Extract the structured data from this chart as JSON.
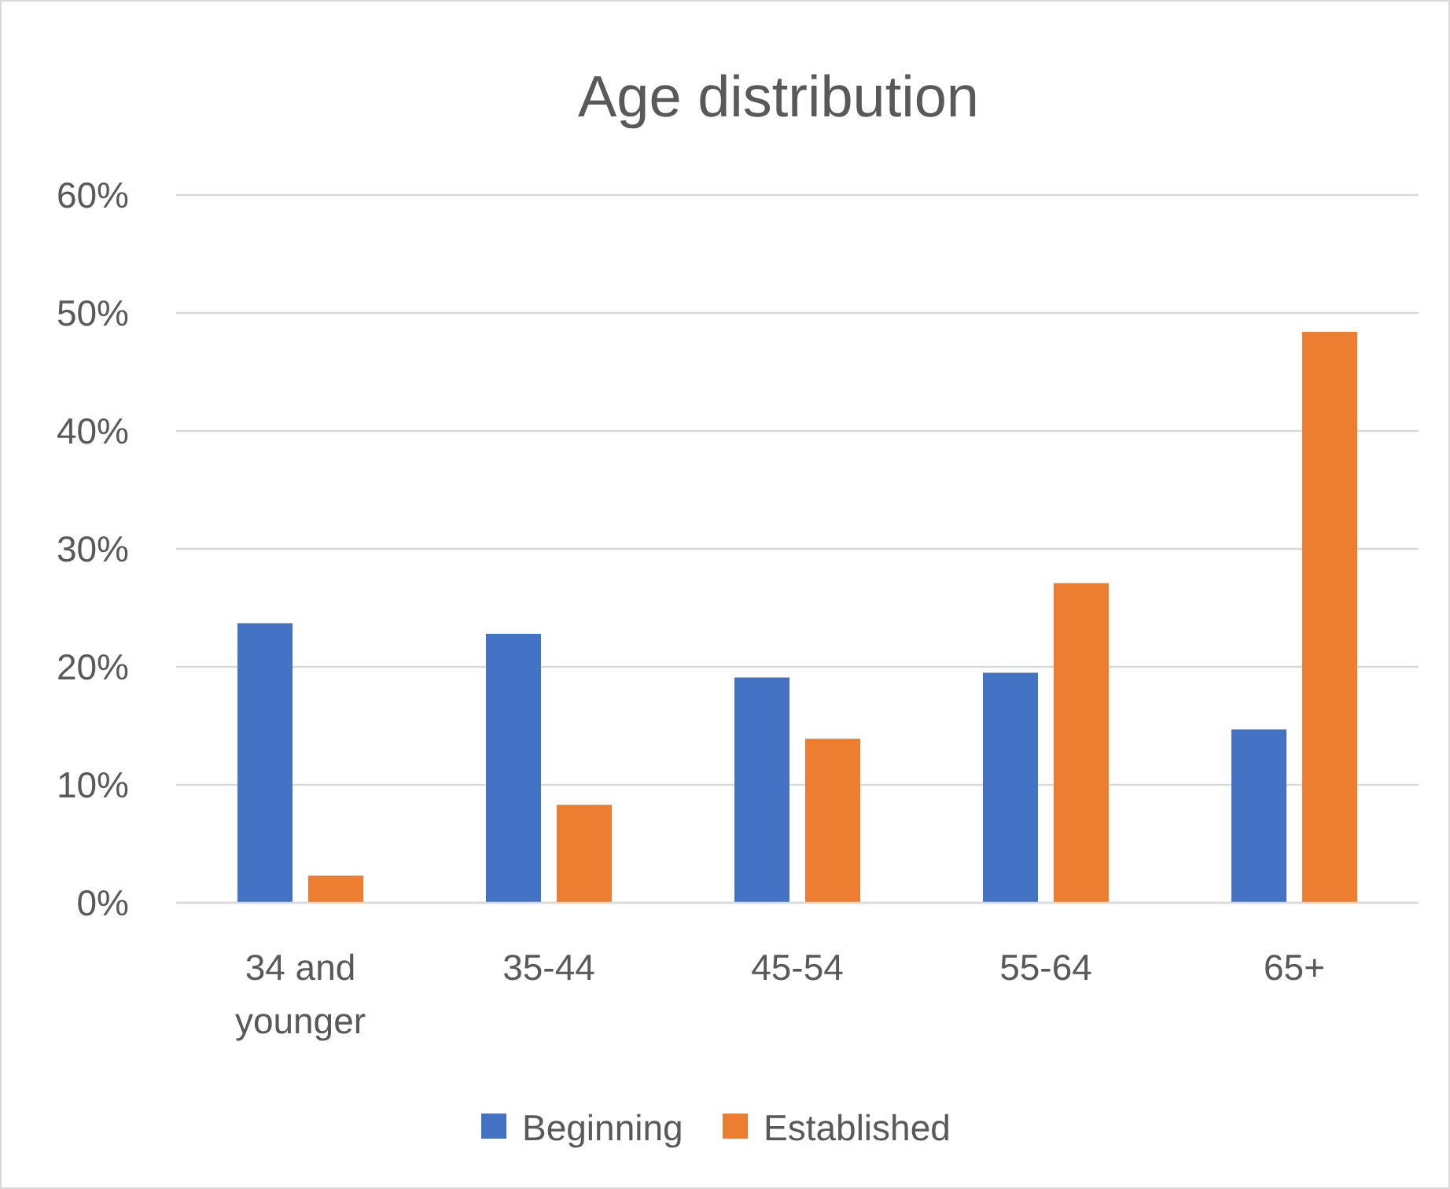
{
  "chart_data": {
    "type": "bar",
    "title": "Age distribution",
    "categories": [
      "34 and younger",
      "35-44",
      "45-54",
      "55-64",
      "65+"
    ],
    "series": [
      {
        "name": "Beginning",
        "color": "#4472c4",
        "values": [
          23.7,
          22.8,
          19.1,
          19.5,
          14.7
        ]
      },
      {
        "name": "Established",
        "color": "#ed7d31",
        "values": [
          2.3,
          8.3,
          13.9,
          27.1,
          48.4
        ]
      }
    ],
    "ylim": [
      0,
      60
    ],
    "yticks": [
      {
        "value": 0,
        "label": "0%"
      },
      {
        "value": 10,
        "label": "10%"
      },
      {
        "value": 20,
        "label": "20%"
      },
      {
        "value": 30,
        "label": "30%"
      },
      {
        "value": 40,
        "label": "40%"
      },
      {
        "value": 50,
        "label": "50%"
      },
      {
        "value": 60,
        "label": "60%"
      }
    ],
    "grid": "y",
    "legend": "bottom"
  }
}
